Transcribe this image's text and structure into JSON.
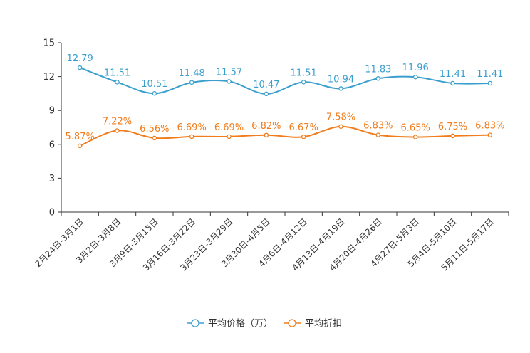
{
  "chart_data": {
    "type": "line",
    "categories": [
      "2月24日-3月1日",
      "3月2日-3月8日",
      "3月9日-3月15日",
      "3月16日-3月22日",
      "3月23日-3月29日",
      "3月30日-4月5日",
      "4月6日-4月12日",
      "4月13日-4月19日",
      "4月20日-4月26日",
      "4月27日-5月3日",
      "5月4日-5月10日",
      "5月11日-5月17日"
    ],
    "series": [
      {
        "name": "平均价格（万）",
        "color": "#3b9fce",
        "values": [
          12.79,
          11.51,
          10.51,
          11.48,
          11.57,
          10.47,
          11.51,
          10.94,
          11.83,
          11.96,
          11.41,
          11.41
        ],
        "labels": [
          "12.79",
          "11.51",
          "10.51",
          "11.48",
          "11.57",
          "10.47",
          "11.51",
          "10.94",
          "11.83",
          "11.96",
          "11.41",
          "11.41"
        ]
      },
      {
        "name": "平均折扣",
        "color": "#f07c1c",
        "values": [
          5.87,
          7.22,
          6.56,
          6.69,
          6.69,
          6.82,
          6.67,
          7.58,
          6.83,
          6.65,
          6.75,
          6.83
        ],
        "labels": [
          "5.87%",
          "7.22%",
          "6.56%",
          "6.69%",
          "6.69%",
          "6.82%",
          "6.67%",
          "7.58%",
          "6.83%",
          "6.65%",
          "6.75%",
          "6.83%"
        ]
      }
    ],
    "yticks": [
      "0",
      "3",
      "6",
      "9",
      "12",
      "15"
    ],
    "ylim": [
      0,
      15
    ],
    "grid": false,
    "legend_position": "bottom"
  }
}
